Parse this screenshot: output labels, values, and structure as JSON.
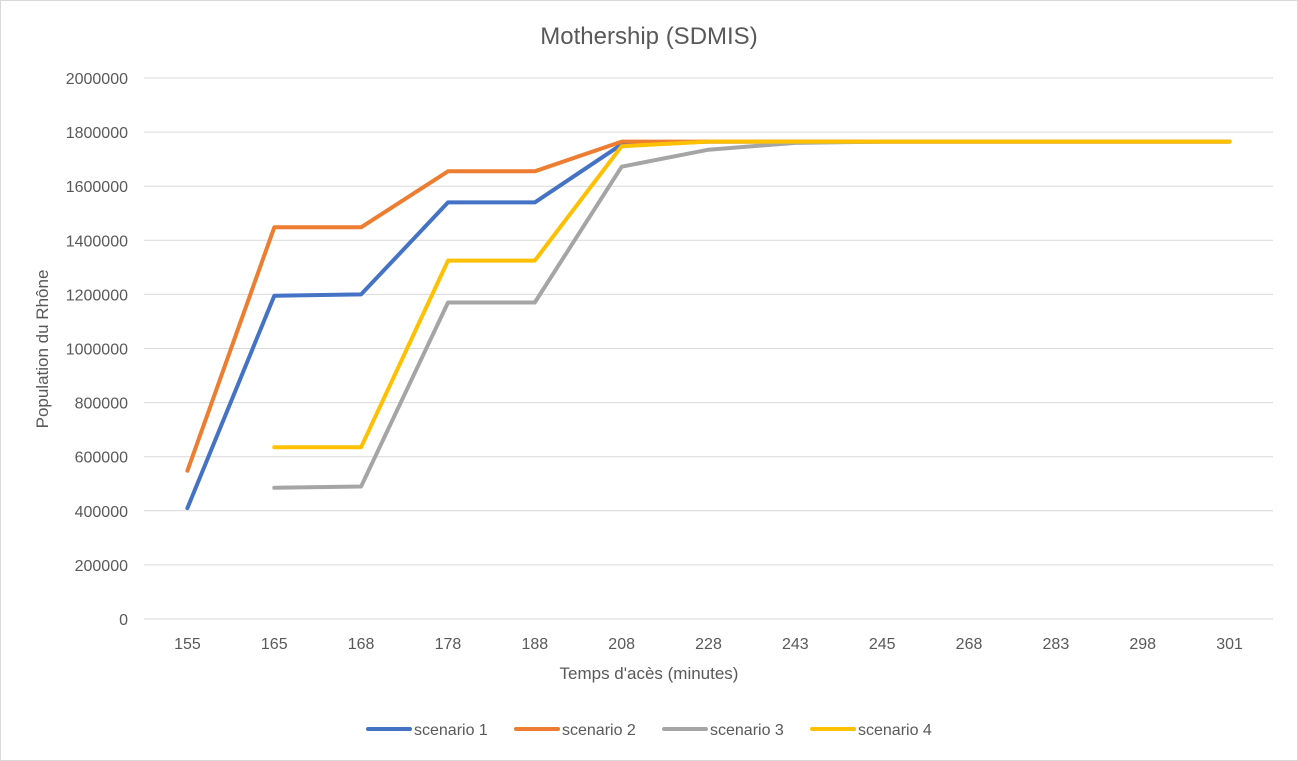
{
  "chart_data": {
    "type": "line",
    "title": "Mothership (SDMIS)",
    "xlabel": "Temps d'acès (minutes)",
    "ylabel": "Population du Rhône",
    "categories": [
      "155",
      "165",
      "168",
      "178",
      "188",
      "208",
      "228",
      "243",
      "245",
      "268",
      "283",
      "298",
      "301"
    ],
    "ylim": [
      0,
      2000000
    ],
    "yticks": [
      "0",
      "200000",
      "400000",
      "600000",
      "800000",
      "1000000",
      "1200000",
      "1400000",
      "1600000",
      "1800000",
      "2000000"
    ],
    "grid": true,
    "legend_position": "bottom",
    "series": [
      {
        "name": "scenario 1",
        "color": "#4472C4",
        "values": [
          410000,
          1195000,
          1200000,
          1540000,
          1540000,
          1755000,
          1765000,
          1765000,
          1765000,
          1765000,
          1765000,
          1765000,
          1765000
        ]
      },
      {
        "name": "scenario 2",
        "color": "#ED7D31",
        "values": [
          548000,
          1448000,
          1448000,
          1655000,
          1655000,
          1765000,
          1765000,
          1765000,
          1765000,
          1765000,
          1765000,
          1765000,
          1765000
        ]
      },
      {
        "name": "scenario 3",
        "color": "#A5A5A5",
        "values": [
          null,
          485000,
          490000,
          1170000,
          1170000,
          1672000,
          1735000,
          1760000,
          1765000,
          1765000,
          1765000,
          1765000,
          1765000
        ]
      },
      {
        "name": "scenario 4",
        "color": "#FFC000",
        "values": [
          null,
          635000,
          635000,
          1325000,
          1325000,
          1748000,
          1765000,
          1765000,
          1765000,
          1765000,
          1765000,
          1765000,
          1765000
        ]
      }
    ]
  }
}
